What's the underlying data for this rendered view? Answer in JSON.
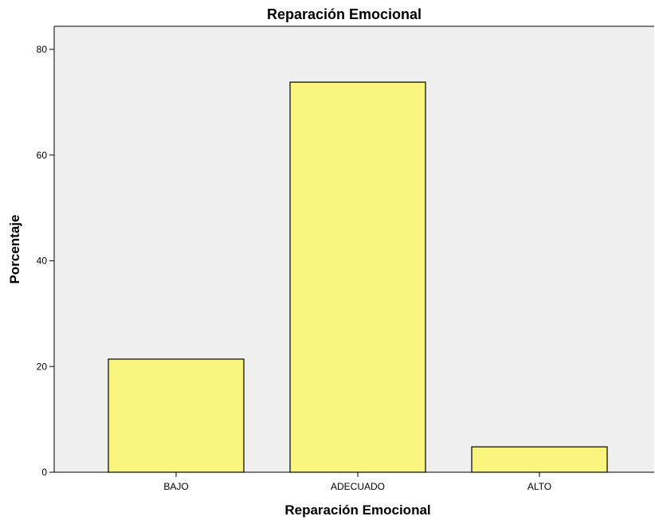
{
  "chart_data": {
    "type": "bar",
    "title": "Reparación Emocional",
    "xlabel": "Reparación Emocional",
    "ylabel": "Porcentaje",
    "categories": [
      "BAJO",
      "ADECUADO",
      "ALTO"
    ],
    "values": [
      21.4,
      73.8,
      4.8
    ],
    "ylim": [
      0,
      80
    ],
    "yticks": [
      0,
      20,
      40,
      60,
      80
    ],
    "grid": false,
    "legend": "none",
    "colors": {
      "bar_fill": "#f8f47e",
      "bar_stroke": "#000000",
      "plot_background": "#f0f0f0",
      "axis": "#000000"
    }
  }
}
